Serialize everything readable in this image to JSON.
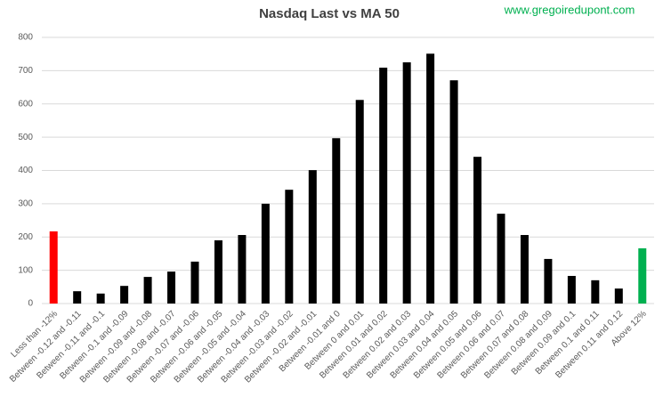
{
  "chart_data": {
    "type": "bar",
    "title": "Nasdaq Last vs MA 50",
    "annotation": "www.gregoiredupont.com",
    "categories": [
      "Less than -12%",
      "Between -0.12 and -0.11",
      "Between -0.11 and -0.1",
      "Between -0.1 and -0.09",
      "Between -0.09 and -0.08",
      "Between -0.08 and -0.07",
      "Between -0.07 and -0.06",
      "Between -0.06 and -0.05",
      "Between -0.05 and -0.04",
      "Between -0.04 and -0.03",
      "Between -0.03 and -0.02",
      "Between -0.02 and -0.01",
      "Between -0.01 and 0",
      "Between 0 and 0.01",
      "Between 0.01 and 0.02",
      "Between 0.02 and 0.03",
      "Between 0.03 and 0.04",
      "Between 0.04 and 0.05",
      "Between 0.05 and 0.06",
      "Between 0.06 and 0.07",
      "Between 0.07 and 0.08",
      "Between 0.08 and 0.09",
      "Between 0.09 and 0.1",
      "Between 0.1 and 0.11",
      "Between 0.11 and 0.12",
      "Above 12%"
    ],
    "values": [
      217,
      37,
      30,
      53,
      80,
      96,
      126,
      190,
      206,
      300,
      342,
      401,
      497,
      612,
      709,
      725,
      751,
      671,
      441,
      270,
      206,
      134,
      83,
      70,
      45,
      166
    ],
    "colors": [
      "#ff0000",
      "#000000",
      "#000000",
      "#000000",
      "#000000",
      "#000000",
      "#000000",
      "#000000",
      "#000000",
      "#000000",
      "#000000",
      "#000000",
      "#000000",
      "#000000",
      "#000000",
      "#000000",
      "#000000",
      "#000000",
      "#000000",
      "#000000",
      "#000000",
      "#000000",
      "#000000",
      "#000000",
      "#000000",
      "#00b050"
    ],
    "ylim": [
      0,
      800
    ],
    "yticks": [
      0,
      100,
      200,
      300,
      400,
      500,
      600,
      700,
      800
    ],
    "grid": true
  }
}
